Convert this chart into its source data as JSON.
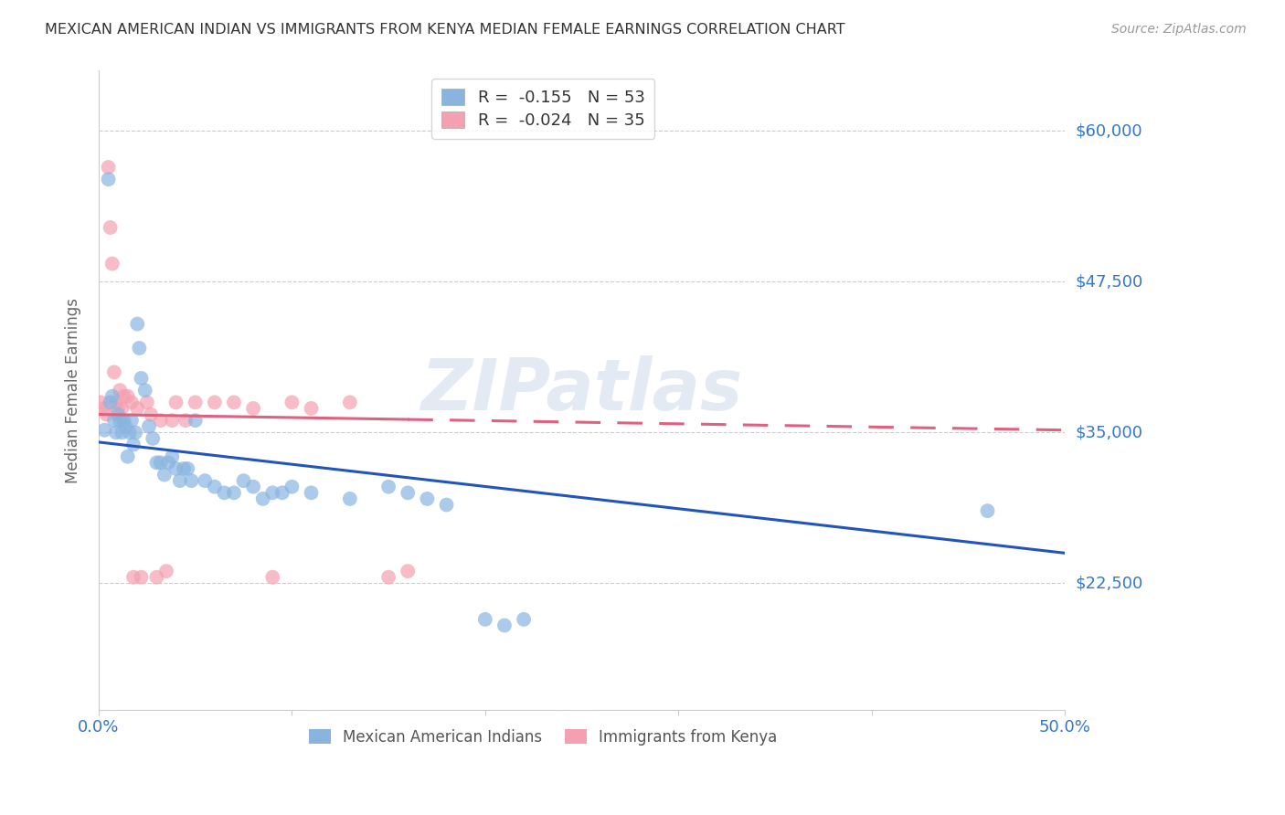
{
  "title": "MEXICAN AMERICAN INDIAN VS IMMIGRANTS FROM KENYA MEDIAN FEMALE EARNINGS CORRELATION CHART",
  "source": "Source: ZipAtlas.com",
  "ylabel": "Median Female Earnings",
  "xlim": [
    0,
    0.5
  ],
  "ylim": [
    12000,
    65000
  ],
  "yticks": [
    22500,
    35000,
    47500,
    60000
  ],
  "ytick_labels": [
    "$22,500",
    "$35,000",
    "$47,500",
    "$60,000"
  ],
  "xticks": [
    0.0,
    0.1,
    0.2,
    0.3,
    0.4,
    0.5
  ],
  "xtick_labels": [
    "0.0%",
    "",
    "",
    "",
    "",
    "50.0%"
  ],
  "blue_color": "#89B4E0",
  "pink_color": "#F4A0B0",
  "blue_line_color": "#2255BB",
  "pink_line_color": "#E06080",
  "tick_label_color": "#3377CC",
  "watermark": "ZIPatlas",
  "blue_line_x0": 0.0,
  "blue_line_y0": 34200,
  "blue_line_x1": 0.5,
  "blue_line_y1": 25000,
  "pink_line_x0": 0.0,
  "pink_line_y0": 36500,
  "pink_line_x1": 0.5,
  "pink_line_y1": 35200,
  "blue_x": [
    0.003,
    0.005,
    0.006,
    0.007,
    0.008,
    0.009,
    0.01,
    0.011,
    0.012,
    0.013,
    0.014,
    0.015,
    0.016,
    0.017,
    0.018,
    0.019,
    0.02,
    0.021,
    0.022,
    0.024,
    0.026,
    0.028,
    0.03,
    0.032,
    0.034,
    0.036,
    0.038,
    0.04,
    0.042,
    0.044,
    0.046,
    0.048,
    0.05,
    0.055,
    0.06,
    0.065,
    0.07,
    0.075,
    0.08,
    0.085,
    0.09,
    0.095,
    0.1,
    0.11,
    0.13,
    0.15,
    0.16,
    0.17,
    0.18,
    0.2,
    0.21,
    0.22,
    0.46
  ],
  "blue_y": [
    35200,
    56000,
    37500,
    38000,
    36000,
    35000,
    36500,
    36000,
    35000,
    36000,
    35500,
    33000,
    35000,
    36000,
    34000,
    35000,
    44000,
    42000,
    39500,
    38500,
    35500,
    34500,
    32500,
    32500,
    31500,
    32500,
    33000,
    32000,
    31000,
    32000,
    32000,
    31000,
    36000,
    31000,
    30500,
    30000,
    30000,
    31000,
    30500,
    29500,
    30000,
    30000,
    30500,
    30000,
    29500,
    30500,
    30000,
    29500,
    29000,
    19500,
    19000,
    19500,
    28500
  ],
  "pink_x": [
    0.001,
    0.003,
    0.004,
    0.005,
    0.006,
    0.007,
    0.008,
    0.009,
    0.01,
    0.011,
    0.013,
    0.015,
    0.017,
    0.02,
    0.025,
    0.03,
    0.035,
    0.04,
    0.05,
    0.06,
    0.07,
    0.08,
    0.09,
    0.1,
    0.11,
    0.13,
    0.15,
    0.16,
    0.012,
    0.018,
    0.022,
    0.027,
    0.032,
    0.038,
    0.045
  ],
  "pink_y": [
    37500,
    37000,
    36500,
    57000,
    52000,
    49000,
    40000,
    37500,
    37000,
    38500,
    38000,
    38000,
    37500,
    37000,
    37500,
    23000,
    23500,
    37500,
    37500,
    37500,
    37500,
    37000,
    23000,
    37500,
    37000,
    37500,
    23000,
    23500,
    37000,
    23000,
    23000,
    36500,
    36000,
    36000,
    36000
  ]
}
